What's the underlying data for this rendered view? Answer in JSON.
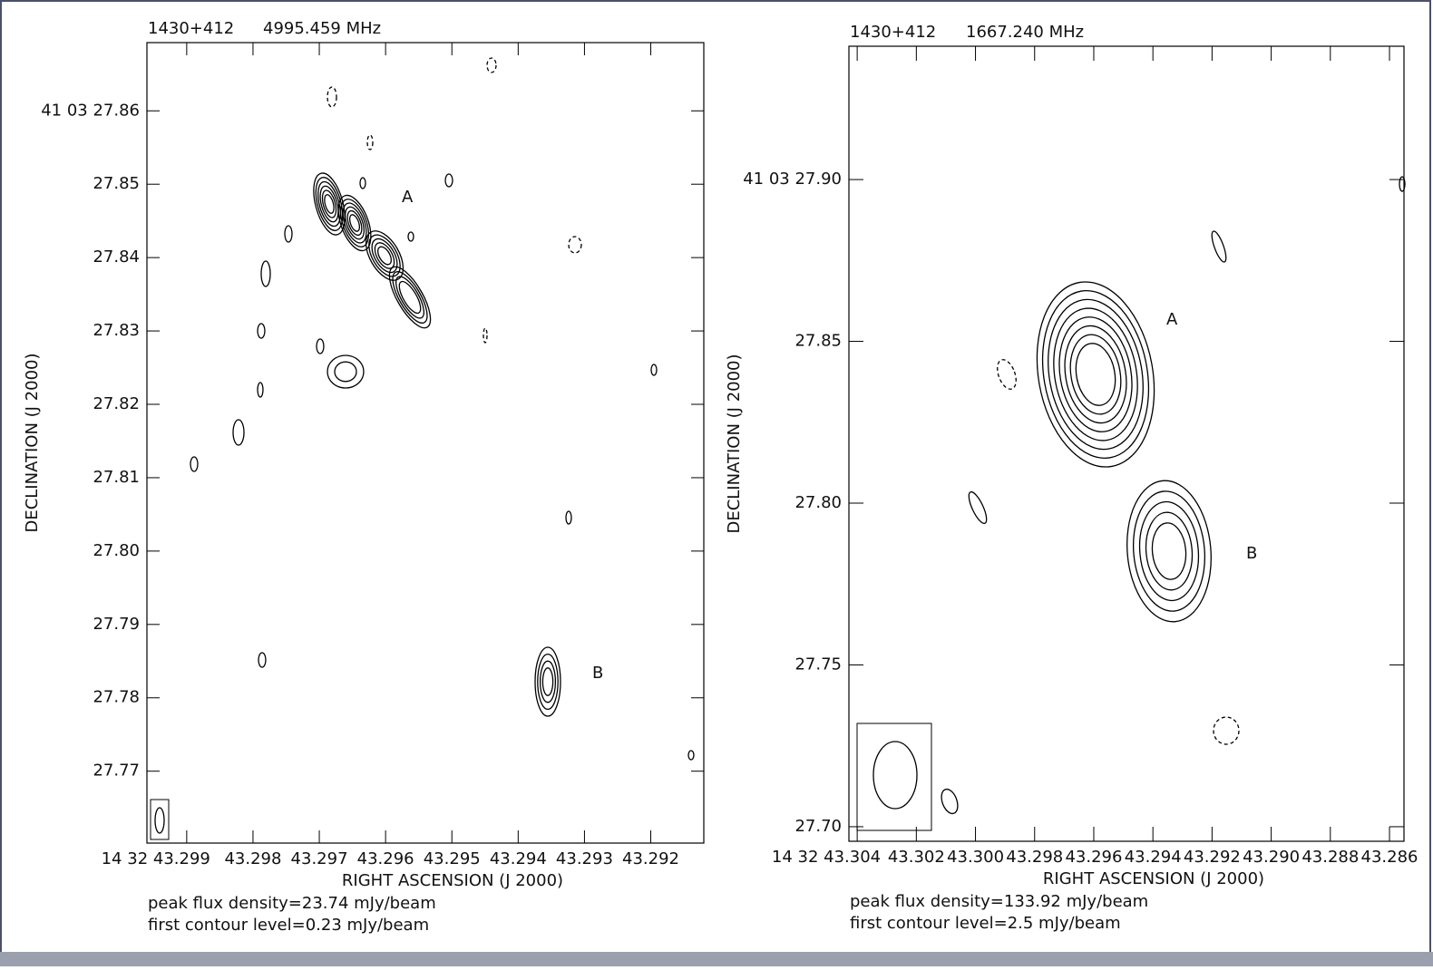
{
  "chart_data": [
    {
      "type": "contour",
      "source": "1430+412",
      "frequency": "4995.459 MHz",
      "xlabel": "RIGHT ASCENSION (J 2000)",
      "ylabel": "DECLINATION (J 2000)",
      "notes": [
        "peak flux density=23.74 mJy/beam",
        "first contour level=0.23 mJy/beam"
      ],
      "annotations": [
        "A",
        "B"
      ],
      "xlim": [
        43.2996,
        43.2912
      ],
      "ylim": [
        27.7602,
        27.8693
      ],
      "xticks": [
        {
          "value": 43.299,
          "label": "14 32 43.299"
        },
        43.298,
        43.297,
        43.296,
        43.295,
        43.294,
        43.293,
        43.292
      ],
      "yticks": [
        27.77,
        27.78,
        27.79,
        {
          "value": 27.8,
          "label": "27.80"
        },
        27.81,
        27.82,
        27.83,
        27.84,
        27.85,
        {
          "value": 27.86,
          "label": "41 03 27.86"
        }
      ]
    },
    {
      "type": "contour",
      "source": "1430+412",
      "frequency": "1667.240 MHz",
      "xlabel": "RIGHT ASCENSION (J 2000)",
      "ylabel": "DECLINATION (J 2000)",
      "notes": [
        "peak flux density=133.92 mJy/beam",
        "first contour level=2.5 mJy/beam"
      ],
      "annotations": [
        "A",
        "B"
      ],
      "xlim": [
        43.30428,
        43.28551
      ],
      "ylim": [
        27.6955,
        27.9412
      ],
      "xticks": [
        {
          "value": 43.304,
          "label": "14 32 43.304"
        },
        43.302,
        {
          "value": 43.3,
          "label": "43.300"
        },
        43.298,
        43.296,
        43.294,
        43.292,
        {
          "value": 43.29,
          "label": "43.290"
        },
        43.288,
        43.286
      ],
      "yticks": [
        {
          "value": 27.7,
          "label": "27.70"
        },
        27.75,
        {
          "value": 27.8,
          "label": "27.80"
        },
        27.85,
        {
          "value": 27.9,
          "label": "41 03 27.90"
        }
      ]
    }
  ]
}
